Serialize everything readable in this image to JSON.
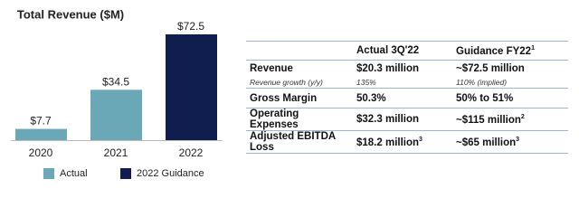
{
  "chart_data": {
    "type": "bar",
    "title": "Total Revenue ($M)",
    "categories": [
      "2020",
      "2021",
      "2022"
    ],
    "values": [
      7.7,
      34.5,
      72.5
    ],
    "value_labels": [
      "$7.7",
      "$34.5",
      "$72.5"
    ],
    "colors": [
      "#6aa7b7",
      "#6aa7b7",
      "#0f1d4f"
    ],
    "legend": [
      {
        "name": "Actual",
        "color": "#6aa7b7"
      },
      {
        "name": "2022 Guidance",
        "color": "#0f1d4f"
      }
    ]
  },
  "table": {
    "header": [
      "Actual 3Q'22",
      {
        "text": "Guidance FY22",
        "sup": "1"
      }
    ],
    "rows": [
      [
        "Revenue",
        "$20.3 million",
        "~$72.5 million"
      ],
      [
        "Revenue growth (y/y)",
        "135%",
        "110% (implied)"
      ],
      [
        "Gross Margin",
        "50.3%",
        "50% to 51%"
      ],
      [
        "Operating Expenses",
        "$32.3 million",
        {
          "text": "~$115 million",
          "sup": "2"
        }
      ],
      [
        "Adjusted EBITDA Loss",
        {
          "text": "$18.2 million",
          "sup": "3"
        },
        {
          "text": "~$65 million",
          "sup": "3"
        }
      ]
    ]
  }
}
